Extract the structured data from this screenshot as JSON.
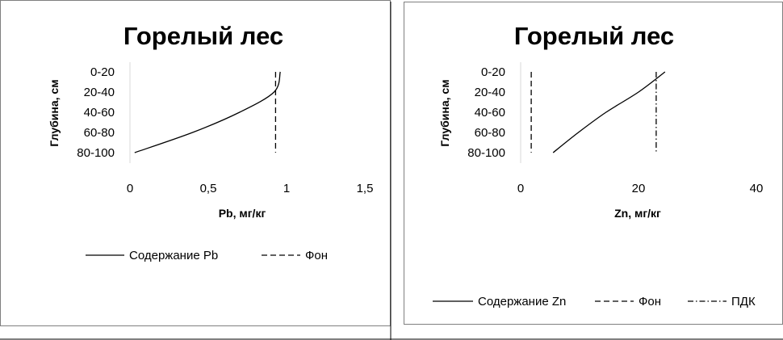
{
  "chart_data": [
    {
      "type": "line",
      "title": "Горелый лес",
      "xlabel": "Pb, мг/кг",
      "ylabel": "Глубина, см",
      "categories": [
        "0-20",
        "20-40",
        "40-60",
        "60-80",
        "80-100"
      ],
      "x_ticks": [
        "0",
        "0,5",
        "1",
        "1,5"
      ],
      "xlim": [
        0,
        1.5
      ],
      "legend_position": "bottom",
      "series": [
        {
          "name": "Содержание Pb",
          "style": "solid",
          "values": [
            0.96,
            0.92,
            0.7,
            0.4,
            0.03
          ]
        },
        {
          "name": "Фон",
          "style": "dashed",
          "values": [
            0.93,
            0.93,
            0.93,
            0.93,
            0.93
          ]
        }
      ]
    },
    {
      "type": "line",
      "title": "Горелый лес",
      "xlabel": "Zn, мг/кг",
      "ylabel": "Глубина, см",
      "categories": [
        "0-20",
        "20-40",
        "40-60",
        "60-80",
        "80-100"
      ],
      "x_ticks": [
        "0",
        "20",
        "40"
      ],
      "xlim": [
        0,
        40
      ],
      "legend_position": "bottom",
      "series": [
        {
          "name": "Содержание Zn",
          "style": "solid",
          "values": [
            24.5,
            20.0,
            14.5,
            9.8,
            5.5
          ]
        },
        {
          "name": "Фон",
          "style": "dashed",
          "values": [
            1.8,
            1.8,
            1.8,
            1.8,
            1.8
          ]
        },
        {
          "name": "ПДК",
          "style": "dashdot",
          "values": [
            23,
            23,
            23,
            23,
            23
          ]
        }
      ]
    }
  ]
}
